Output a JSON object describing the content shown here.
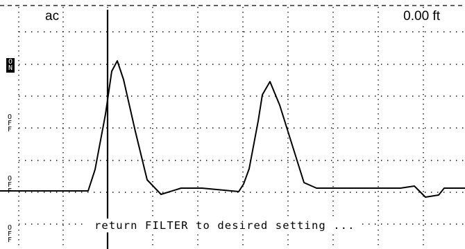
{
  "display": {
    "channel": "ac",
    "distance": "0.00 ft",
    "message": "return FILTER to desired setting ...",
    "colors": {
      "background": "#ffffff",
      "trace": "#000000",
      "grid": "#000000",
      "tag_active_bg": "#000000",
      "tag_active_fg": "#ffffff"
    }
  },
  "side_tags": [
    {
      "chars": [
        "O",
        "N"
      ],
      "state": "active"
    },
    {
      "chars": [
        "O",
        "F",
        "F"
      ],
      "state": "inactive"
    },
    {
      "chars": [
        "O",
        "F",
        "F"
      ],
      "state": "inactive"
    },
    {
      "chars": [
        "O",
        "F",
        "F"
      ],
      "state": "inactive"
    }
  ]
}
